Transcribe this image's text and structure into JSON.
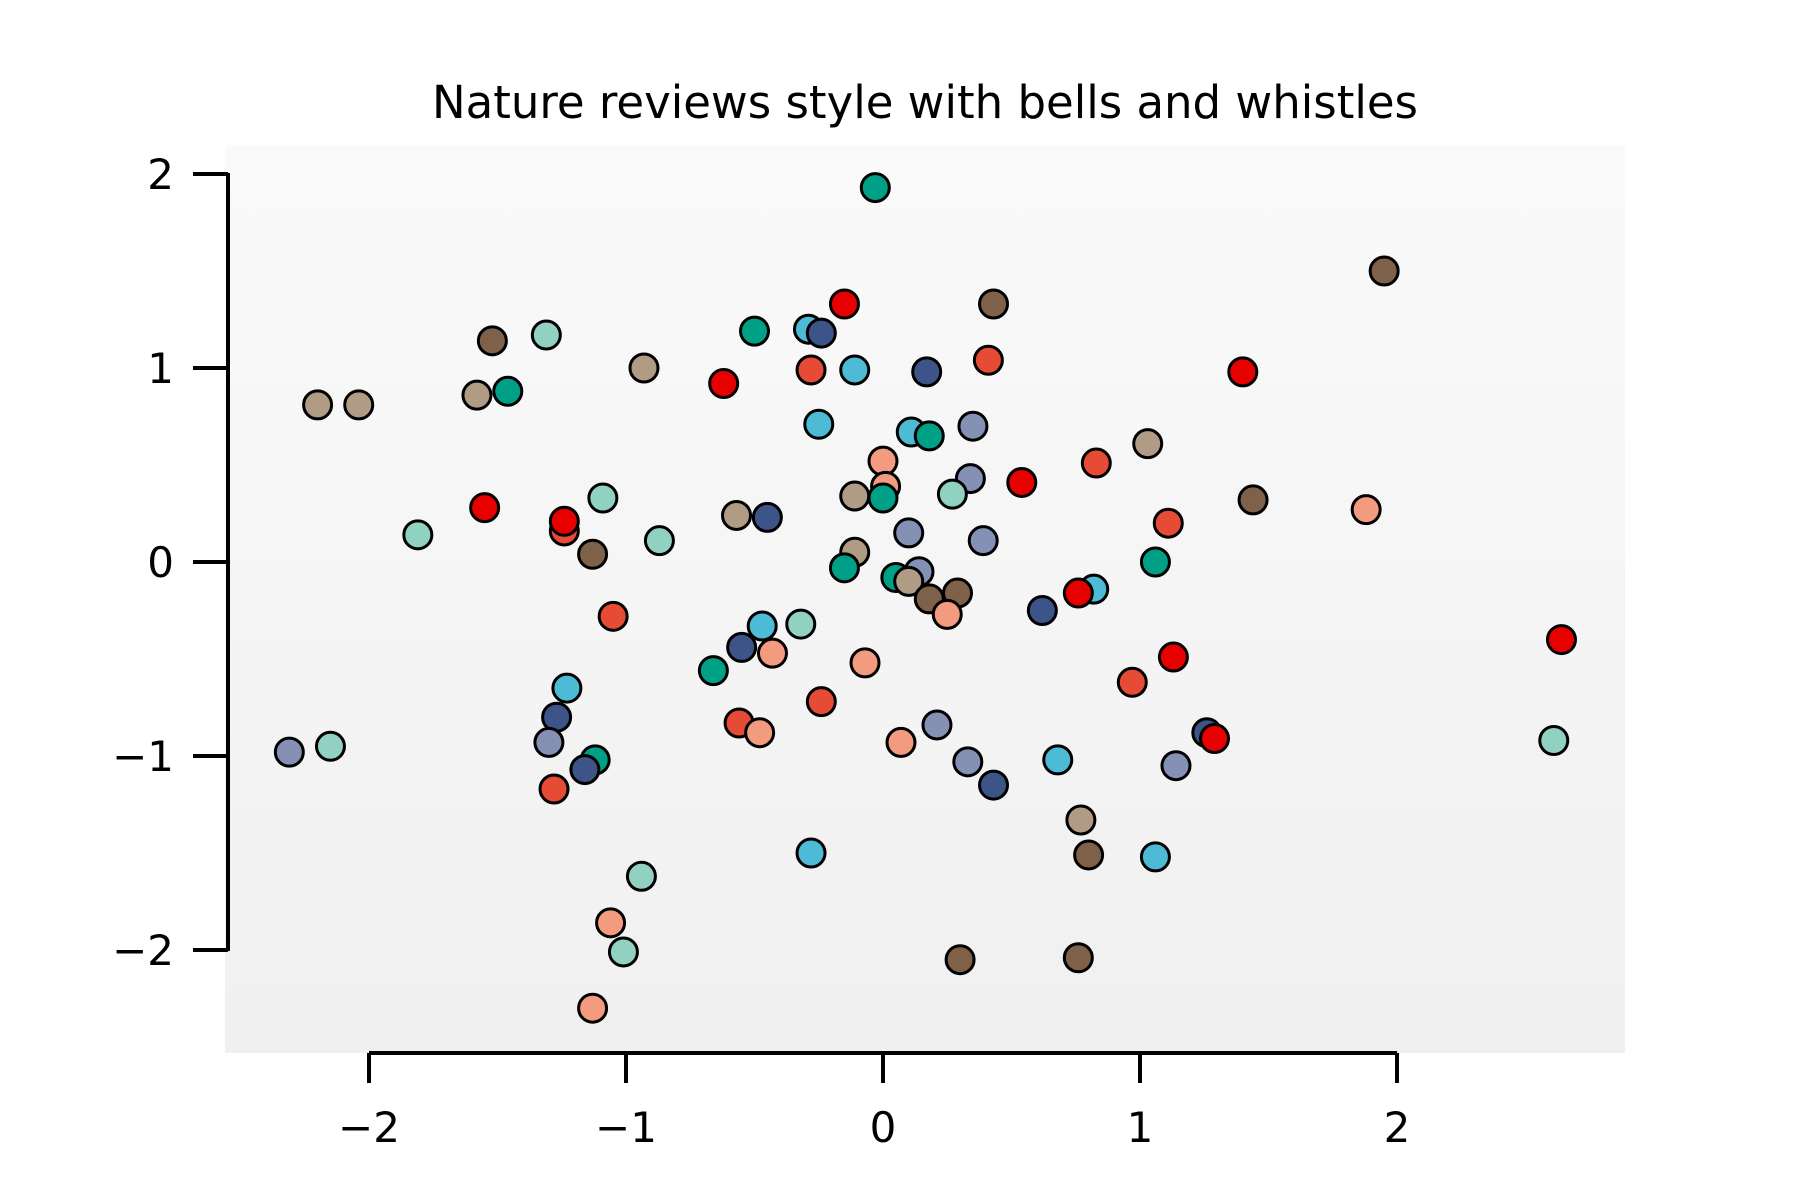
{
  "chart_data": {
    "type": "scatter",
    "title": "Nature reviews style with bells and whistles",
    "xlabel": "",
    "ylabel": "",
    "xlim": [
      -2.6,
      2.9
    ],
    "ylim": [
      -2.5,
      2.15
    ],
    "x_ticks": [
      -2,
      -1,
      0,
      1,
      2
    ],
    "y_ticks": [
      -2,
      -1,
      0,
      1,
      2
    ],
    "x_tick_labels": [
      "−2",
      "−1",
      "0",
      "1",
      "2"
    ],
    "y_tick_labels": [
      "−2",
      "−1",
      "0",
      "1",
      "2"
    ],
    "grid": false,
    "legend": "none",
    "marker_edge_color": "#000000",
    "background": "light gray gradient",
    "points": [
      {
        "x": -0.03,
        "y": 1.93,
        "color": "#00a087"
      },
      {
        "x": 1.95,
        "y": 1.5,
        "color": "#7e6148"
      },
      {
        "x": -0.15,
        "y": 1.33,
        "color": "#e60000"
      },
      {
        "x": 0.43,
        "y": 1.33,
        "color": "#7e6148"
      },
      {
        "x": -0.29,
        "y": 1.2,
        "color": "#4dbbd5"
      },
      {
        "x": -0.24,
        "y": 1.18,
        "color": "#3c5488"
      },
      {
        "x": -0.5,
        "y": 1.19,
        "color": "#00a087"
      },
      {
        "x": -1.31,
        "y": 1.17,
        "color": "#91d1c2"
      },
      {
        "x": -1.52,
        "y": 1.14,
        "color": "#7e6148"
      },
      {
        "x": 0.41,
        "y": 1.04,
        "color": "#e64b35"
      },
      {
        "x": -0.93,
        "y": 1.0,
        "color": "#b09c85"
      },
      {
        "x": -0.28,
        "y": 0.99,
        "color": "#e64b35"
      },
      {
        "x": -0.11,
        "y": 0.99,
        "color": "#4dbbd5"
      },
      {
        "x": 0.17,
        "y": 0.98,
        "color": "#3c5488"
      },
      {
        "x": 1.4,
        "y": 0.98,
        "color": "#e60000"
      },
      {
        "x": -0.62,
        "y": 0.92,
        "color": "#e60000"
      },
      {
        "x": -1.46,
        "y": 0.88,
        "color": "#00a087"
      },
      {
        "x": -1.58,
        "y": 0.86,
        "color": "#b09c85"
      },
      {
        "x": -2.2,
        "y": 0.81,
        "color": "#b09c85"
      },
      {
        "x": -2.04,
        "y": 0.81,
        "color": "#b09c85"
      },
      {
        "x": -0.25,
        "y": 0.71,
        "color": "#4dbbd5"
      },
      {
        "x": 0.35,
        "y": 0.7,
        "color": "#8491b4"
      },
      {
        "x": 0.11,
        "y": 0.67,
        "color": "#4dbbd5"
      },
      {
        "x": 0.18,
        "y": 0.65,
        "color": "#00a087"
      },
      {
        "x": 1.03,
        "y": 0.61,
        "color": "#b09c85"
      },
      {
        "x": 0.0,
        "y": 0.52,
        "color": "#f39b7f"
      },
      {
        "x": 0.83,
        "y": 0.51,
        "color": "#e64b35"
      },
      {
        "x": 0.34,
        "y": 0.43,
        "color": "#8491b4"
      },
      {
        "x": 0.54,
        "y": 0.41,
        "color": "#e60000"
      },
      {
        "x": 0.01,
        "y": 0.39,
        "color": "#f39b7f"
      },
      {
        "x": 0.27,
        "y": 0.35,
        "color": "#91d1c2"
      },
      {
        "x": -0.11,
        "y": 0.34,
        "color": "#b09c85"
      },
      {
        "x": 0.0,
        "y": 0.33,
        "color": "#00a087"
      },
      {
        "x": -1.09,
        "y": 0.33,
        "color": "#91d1c2"
      },
      {
        "x": 1.44,
        "y": 0.32,
        "color": "#7e6148"
      },
      {
        "x": -1.55,
        "y": 0.28,
        "color": "#e60000"
      },
      {
        "x": 1.88,
        "y": 0.27,
        "color": "#f39b7f"
      },
      {
        "x": -0.57,
        "y": 0.24,
        "color": "#b09c85"
      },
      {
        "x": -0.45,
        "y": 0.23,
        "color": "#3c5488"
      },
      {
        "x": 1.11,
        "y": 0.2,
        "color": "#e64b35"
      },
      {
        "x": -1.24,
        "y": 0.16,
        "color": "#e64b35"
      },
      {
        "x": -1.24,
        "y": 0.21,
        "color": "#e60000"
      },
      {
        "x": 0.1,
        "y": 0.15,
        "color": "#8491b4"
      },
      {
        "x": -1.81,
        "y": 0.14,
        "color": "#91d1c2"
      },
      {
        "x": -0.87,
        "y": 0.11,
        "color": "#91d1c2"
      },
      {
        "x": 0.39,
        "y": 0.11,
        "color": "#8491b4"
      },
      {
        "x": -0.11,
        "y": 0.05,
        "color": "#b09c85"
      },
      {
        "x": -1.13,
        "y": 0.04,
        "color": "#7e6148"
      },
      {
        "x": 1.06,
        "y": 0.0,
        "color": "#00a087"
      },
      {
        "x": -0.15,
        "y": -0.03,
        "color": "#00a087"
      },
      {
        "x": 0.14,
        "y": -0.05,
        "color": "#8491b4"
      },
      {
        "x": 0.05,
        "y": -0.08,
        "color": "#00a087"
      },
      {
        "x": 0.1,
        "y": -0.1,
        "color": "#b09c85"
      },
      {
        "x": 0.82,
        "y": -0.14,
        "color": "#4dbbd5"
      },
      {
        "x": 0.29,
        "y": -0.16,
        "color": "#7e6148"
      },
      {
        "x": 0.76,
        "y": -0.16,
        "color": "#e60000"
      },
      {
        "x": 0.18,
        "y": -0.19,
        "color": "#7e6148"
      },
      {
        "x": 0.62,
        "y": -0.25,
        "color": "#3c5488"
      },
      {
        "x": 0.25,
        "y": -0.27,
        "color": "#f39b7f"
      },
      {
        "x": -1.05,
        "y": -0.28,
        "color": "#e64b35"
      },
      {
        "x": -0.32,
        "y": -0.32,
        "color": "#91d1c2"
      },
      {
        "x": -0.47,
        "y": -0.33,
        "color": "#4dbbd5"
      },
      {
        "x": 2.64,
        "y": -0.4,
        "color": "#e60000"
      },
      {
        "x": -0.55,
        "y": -0.44,
        "color": "#3c5488"
      },
      {
        "x": -0.43,
        "y": -0.47,
        "color": "#f39b7f"
      },
      {
        "x": 1.13,
        "y": -0.49,
        "color": "#e60000"
      },
      {
        "x": -0.07,
        "y": -0.52,
        "color": "#f39b7f"
      },
      {
        "x": -0.66,
        "y": -0.56,
        "color": "#00a087"
      },
      {
        "x": 0.97,
        "y": -0.62,
        "color": "#e64b35"
      },
      {
        "x": -1.23,
        "y": -0.65,
        "color": "#4dbbd5"
      },
      {
        "x": -0.24,
        "y": -0.72,
        "color": "#e64b35"
      },
      {
        "x": -1.27,
        "y": -0.8,
        "color": "#3c5488"
      },
      {
        "x": -0.56,
        "y": -0.83,
        "color": "#e64b35"
      },
      {
        "x": 0.21,
        "y": -0.84,
        "color": "#8491b4"
      },
      {
        "x": -0.48,
        "y": -0.88,
        "color": "#f39b7f"
      },
      {
        "x": 1.26,
        "y": -0.88,
        "color": "#3c5488"
      },
      {
        "x": 1.29,
        "y": -0.91,
        "color": "#e60000"
      },
      {
        "x": 2.61,
        "y": -0.92,
        "color": "#91d1c2"
      },
      {
        "x": 0.07,
        "y": -0.93,
        "color": "#f39b7f"
      },
      {
        "x": -1.3,
        "y": -0.93,
        "color": "#8491b4"
      },
      {
        "x": -2.15,
        "y": -0.95,
        "color": "#91d1c2"
      },
      {
        "x": -2.31,
        "y": -0.98,
        "color": "#8491b4"
      },
      {
        "x": 0.68,
        "y": -1.02,
        "color": "#4dbbd5"
      },
      {
        "x": -1.12,
        "y": -1.02,
        "color": "#00a087"
      },
      {
        "x": 0.33,
        "y": -1.03,
        "color": "#8491b4"
      },
      {
        "x": 1.14,
        "y": -1.05,
        "color": "#8491b4"
      },
      {
        "x": -1.16,
        "y": -1.07,
        "color": "#3c5488"
      },
      {
        "x": 0.43,
        "y": -1.15,
        "color": "#3c5488"
      },
      {
        "x": -1.28,
        "y": -1.17,
        "color": "#e64b35"
      },
      {
        "x": 0.77,
        "y": -1.33,
        "color": "#b09c85"
      },
      {
        "x": -0.28,
        "y": -1.5,
        "color": "#4dbbd5"
      },
      {
        "x": 0.8,
        "y": -1.51,
        "color": "#7e6148"
      },
      {
        "x": 1.06,
        "y": -1.52,
        "color": "#4dbbd5"
      },
      {
        "x": -0.94,
        "y": -1.62,
        "color": "#91d1c2"
      },
      {
        "x": -1.06,
        "y": -1.86,
        "color": "#f39b7f"
      },
      {
        "x": -1.01,
        "y": -2.01,
        "color": "#91d1c2"
      },
      {
        "x": 0.76,
        "y": -2.04,
        "color": "#7e6148"
      },
      {
        "x": 0.3,
        "y": -2.05,
        "color": "#7e6148"
      },
      {
        "x": -1.13,
        "y": -2.3,
        "color": "#f39b7f"
      }
    ]
  }
}
